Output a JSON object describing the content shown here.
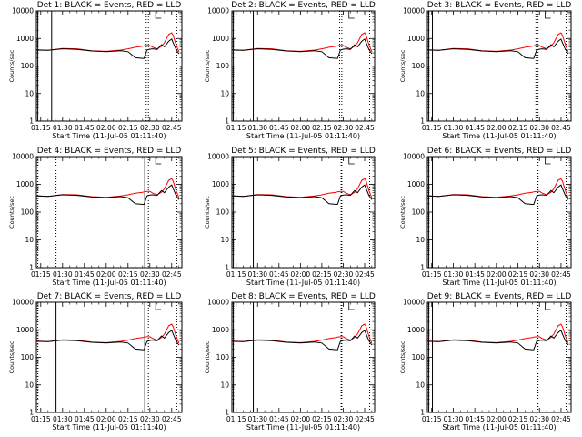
{
  "chart_data": {
    "type": "line",
    "layout": "grid",
    "rows": 3,
    "cols": 3,
    "shared": {
      "xlabel": "Start Time (11-Jul-05 01:11:40)",
      "ylabel": "Counts/sec",
      "x_tick_labels": [
        "01:15",
        "01:30",
        "01:45",
        "02:00",
        "02:15",
        "02:30",
        "02:45"
      ],
      "x_ticks_min": [
        15,
        30,
        45,
        60,
        75,
        90,
        105
      ],
      "xlim_min": [
        12,
        112
      ],
      "y_scale": "log",
      "ylim": [
        1,
        10000
      ],
      "y_tick_labels": [
        "1",
        "10",
        "100",
        "1000",
        "10000"
      ],
      "y_ticks": [
        1,
        10,
        100,
        1000,
        10000
      ],
      "grid": false,
      "colors": {
        "events": "#000000",
        "lld": "#ff0000"
      },
      "series_meaning": {
        "BLACK": "Events",
        "RED": "LLD"
      },
      "x_min": [
        12,
        20,
        30,
        40,
        50,
        60,
        70,
        75,
        80,
        85,
        86,
        88,
        90,
        92,
        95,
        98,
        100,
        103,
        105,
        106,
        108,
        110
      ],
      "events": [
        380,
        370,
        420,
        400,
        350,
        330,
        360,
        330,
        200,
        190,
        190,
        380,
        410,
        420,
        400,
        600,
        500,
        800,
        950,
        700,
        400,
        280
      ],
      "lld": [
        390,
        370,
        430,
        420,
        360,
        340,
        380,
        420,
        480,
        520,
        540,
        560,
        560,
        480,
        420,
        520,
        700,
        1400,
        1600,
        1300,
        600,
        330
      ]
    },
    "panels": [
      {
        "title": "Det 1: BLACK = Events, RED = LLD",
        "markers": [
          {
            "x": 13,
            "style": "solid"
          },
          {
            "x": 22.5,
            "style": "solid"
          },
          {
            "x": 87.5,
            "style": "dotted"
          },
          {
            "x": 89,
            "style": "dotted"
          },
          {
            "x": 108.5,
            "style": "dotted"
          }
        ],
        "flag_x": 94
      },
      {
        "title": "Det 2: BLACK = Events, RED = LLD",
        "markers": [
          {
            "x": 13,
            "style": "solid"
          },
          {
            "x": 27,
            "style": "solid"
          },
          {
            "x": 87.5,
            "style": "dotted"
          },
          {
            "x": 89,
            "style": "dotted"
          },
          {
            "x": 108.5,
            "style": "dotted"
          }
        ],
        "flag_x": 94
      },
      {
        "title": "Det 3: BLACK = Events, RED = LLD",
        "markers": [
          {
            "x": 13,
            "style": "solid"
          },
          {
            "x": 15.5,
            "style": "solid"
          },
          {
            "x": 87.5,
            "style": "dotted"
          },
          {
            "x": 89,
            "style": "dotted"
          },
          {
            "x": 108.5,
            "style": "dotted"
          }
        ],
        "flag_x": 94
      },
      {
        "title": "Det 4: BLACK = Events, RED = LLD",
        "markers": [
          {
            "x": 13,
            "style": "dotted"
          },
          {
            "x": 25.5,
            "style": "dotted"
          },
          {
            "x": 86.5,
            "style": "solid"
          },
          {
            "x": 89,
            "style": "dotted"
          },
          {
            "x": 108.5,
            "style": "dotted"
          }
        ],
        "flag_x": 94
      },
      {
        "title": "Det 5: BLACK = Events, RED = LLD",
        "markers": [
          {
            "x": 13,
            "style": "solid"
          },
          {
            "x": 27,
            "style": "solid"
          },
          {
            "x": 88.5,
            "style": "dotted"
          },
          {
            "x": 89,
            "style": "dotted"
          },
          {
            "x": 108.5,
            "style": "dotted"
          }
        ],
        "flag_x": 94
      },
      {
        "title": "Det 6: BLACK = Events, RED = LLD",
        "markers": [
          {
            "x": 13,
            "style": "solid"
          },
          {
            "x": 15.5,
            "style": "solid"
          },
          {
            "x": 88.5,
            "style": "dotted"
          },
          {
            "x": 89,
            "style": "dotted"
          },
          {
            "x": 108.5,
            "style": "dotted"
          }
        ],
        "flag_x": 94
      },
      {
        "title": "Det 7: BLACK = Events, RED = LLD",
        "markers": [
          {
            "x": 13,
            "style": "dotted"
          },
          {
            "x": 25.5,
            "style": "solid"
          },
          {
            "x": 86.5,
            "style": "solid"
          },
          {
            "x": 89,
            "style": "dotted"
          },
          {
            "x": 108.5,
            "style": "dotted"
          }
        ],
        "flag_x": 94
      },
      {
        "title": "Det 8: BLACK = Events, RED = LLD",
        "markers": [
          {
            "x": 13,
            "style": "solid"
          },
          {
            "x": 27,
            "style": "solid"
          },
          {
            "x": 88.5,
            "style": "dotted"
          },
          {
            "x": 89,
            "style": "dotted"
          },
          {
            "x": 108.5,
            "style": "dotted"
          }
        ],
        "flag_x": 94
      },
      {
        "title": "Det 9: BLACK = Events, RED = LLD",
        "markers": [
          {
            "x": 13,
            "style": "solid"
          },
          {
            "x": 15.5,
            "style": "solid"
          },
          {
            "x": 88.5,
            "style": "dotted"
          },
          {
            "x": 89,
            "style": "dotted"
          },
          {
            "x": 108.5,
            "style": "dotted"
          }
        ],
        "flag_x": 94
      }
    ]
  }
}
